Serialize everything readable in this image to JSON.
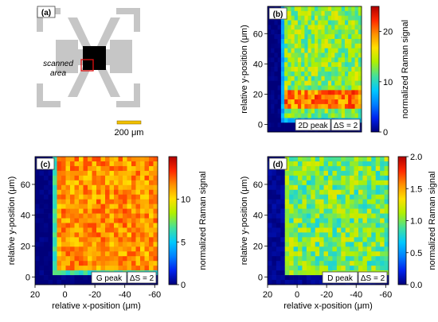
{
  "panel_a": {
    "label": "(a)",
    "annotation": "scanned area",
    "scale_bar_label": "200 μm",
    "colors": {
      "electrodes": "#c6c6c6",
      "graphene": "#000000",
      "scan_box": "#e01010",
      "annotation": "#e01010",
      "scale_bar": "#f0c000"
    }
  },
  "colorscale": [
    "#00007a",
    "#0022ee",
    "#0080ff",
    "#00c8ff",
    "#40e0a0",
    "#b0f000",
    "#ffe000",
    "#ff9000",
    "#ff2800",
    "#b00000"
  ],
  "chart_data": [
    {
      "panel": "(b)",
      "type": "heatmap",
      "peak_label": "2D peak",
      "delta_label": "ΔS = 2",
      "xlabel": "",
      "ylabel": "relative y-position  (μm)",
      "xlim": [
        20,
        -62
      ],
      "ylim": [
        -5,
        78
      ],
      "xticks": [],
      "yticks": [
        0,
        20,
        40,
        60
      ],
      "colorbar": {
        "label": "normalized Raman signal",
        "range": [
          0,
          25
        ],
        "ticks": [
          0,
          10,
          20
        ]
      },
      "map_levels": {
        "background": 0,
        "scanned_area_mean": 13,
        "scanned_area_variation": 3,
        "hot_band_rows": [
          10,
          22
        ],
        "hot_band_level": 20
      }
    },
    {
      "panel": "(c)",
      "type": "heatmap",
      "peak_label": "G peak",
      "delta_label": "ΔS = 2",
      "xlabel": "relative x-position  (μm)",
      "ylabel": "relative y-position  (μm)",
      "xlim": [
        20,
        -62
      ],
      "ylim": [
        -5,
        78
      ],
      "xticks": [
        20,
        0,
        -20,
        -40,
        -60
      ],
      "yticks": [
        0,
        20,
        40,
        60
      ],
      "colorbar": {
        "label": "normalized Raman signal",
        "range": [
          0,
          15
        ],
        "ticks": [
          0,
          5,
          10
        ]
      },
      "map_levels": {
        "background": 0,
        "scanned_area_mean": 11.5,
        "scanned_area_variation": 1.5
      }
    },
    {
      "panel": "(d)",
      "type": "heatmap",
      "peak_label": "D peak",
      "delta_label": "ΔS = 2",
      "xlabel": "relative x-position  (μm)",
      "ylabel": "relative y-position  (μm)",
      "xlim": [
        20,
        -62
      ],
      "ylim": [
        -5,
        78
      ],
      "xticks": [
        20,
        0,
        -20,
        -40,
        -60
      ],
      "yticks": [
        0,
        20,
        40,
        60
      ],
      "colorbar": {
        "label": "normalized Raman signal",
        "range": [
          0,
          2.0
        ],
        "ticks": [
          "0.0",
          "0.5",
          "1.0",
          "1.5",
          "2.0"
        ]
      },
      "map_levels": {
        "background": 0.05,
        "scanned_area_mean": 1.0,
        "scanned_area_variation": 0.25,
        "edge_line_level": 1.1
      }
    }
  ]
}
